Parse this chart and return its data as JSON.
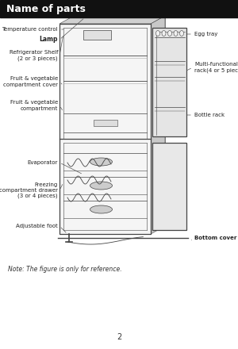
{
  "bg_color": "#ffffff",
  "header_bg": "#111111",
  "header_text": "Name of parts",
  "header_text_color": "#ffffff",
  "header_font_size": 9,
  "note_text": "Note: The figure is only for reference.",
  "note_font_size": 5.5,
  "page_number": "2",
  "page_number_font_size": 7,
  "ec": "#444444",
  "lw_main": 0.9,
  "lw_inner": 0.5
}
